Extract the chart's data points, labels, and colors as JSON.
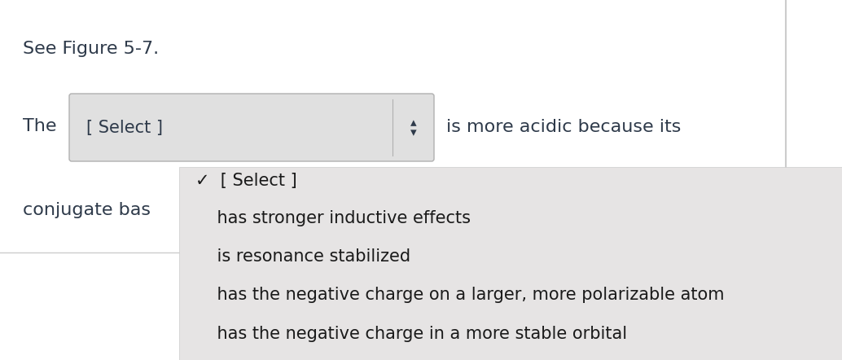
{
  "page_bg": "#ffffff",
  "text_color": "#2e3a4a",
  "figure_text": "See Figure 5-7.",
  "figure_text_size": 16,
  "line1_label": "The",
  "line1_size": 16,
  "dropdown_text": "[ Select ]",
  "dropdown_text_size": 15,
  "dropdown_bg_top": "#f0f0f0",
  "dropdown_bg": "#e0e0e0",
  "dropdown_border": "#b0b0b0",
  "after_dropdown_text": "is more acidic because its",
  "after_dropdown_size": 16,
  "conjugate_text": "conjugate bas",
  "conjugate_size": 16,
  "right_border_color": "#cccccc",
  "menu_bg": "#e6e4e4",
  "menu_border": "#cccccc",
  "menu_text_color": "#1a1a1a",
  "menu_text_size": 15,
  "menu_items": [
    {
      "text": "✓  [ Select ]",
      "bold": false
    },
    {
      "text": "    has stronger inductive effects",
      "bold": false
    },
    {
      "text": "    is resonance stabilized",
      "bold": false
    },
    {
      "text": "    has the negative charge on a larger, more polarizable atom",
      "bold": false
    },
    {
      "text": "    has the negative charge in a more stable orbital",
      "bold": false
    }
  ],
  "arrow_char": "◆"
}
